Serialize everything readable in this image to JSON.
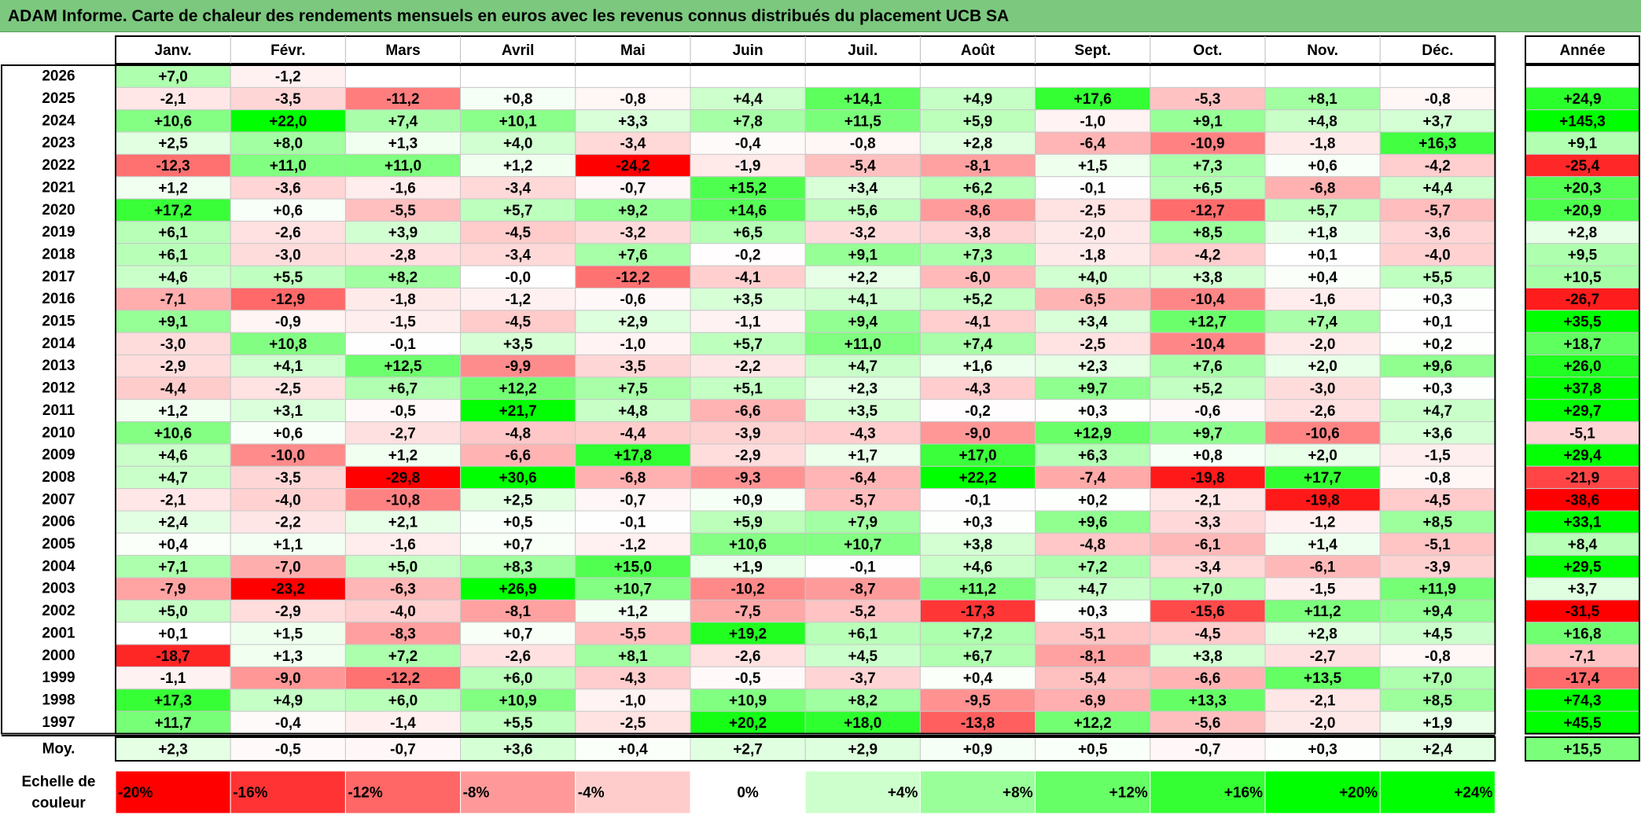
{
  "chart_data": {
    "type": "heatmap",
    "title": "ADAM Informe. Carte de chaleur des rendements mensuels en euros avec les revenus connus distribués du placement UCB SA",
    "months": [
      "Janv.",
      "Févr.",
      "Mars",
      "Avril",
      "Mai",
      "Juin",
      "Juil.",
      "Août",
      "Sept.",
      "Oct.",
      "Nov.",
      "Déc."
    ],
    "year_header": "Année",
    "rows": [
      {
        "year": "2026",
        "values": [
          "+7,0",
          "-1,2",
          "",
          "",
          "",
          "",
          "",
          "",
          "",
          "",
          "",
          ""
        ],
        "annual": ""
      },
      {
        "year": "2025",
        "values": [
          "-2,1",
          "-3,5",
          "-11,2",
          "+0,8",
          "-0,8",
          "+4,4",
          "+14,1",
          "+4,9",
          "+17,6",
          "-5,3",
          "+8,1",
          "-0,8"
        ],
        "annual": "+24,9"
      },
      {
        "year": "2024",
        "values": [
          "+10,6",
          "+22,0",
          "+7,4",
          "+10,1",
          "+3,3",
          "+7,8",
          "+11,5",
          "+5,9",
          "-1,0",
          "+9,1",
          "+4,8",
          "+3,7"
        ],
        "annual": "+145,3"
      },
      {
        "year": "2023",
        "values": [
          "+2,5",
          "+8,0",
          "+1,3",
          "+4,0",
          "-3,4",
          "-0,4",
          "-0,8",
          "+2,8",
          "-6,4",
          "-10,9",
          "-1,8",
          "+16,3"
        ],
        "annual": "+9,1"
      },
      {
        "year": "2022",
        "values": [
          "-12,3",
          "+11,0",
          "+11,0",
          "+1,2",
          "-24,2",
          "-1,9",
          "-5,4",
          "-8,1",
          "+1,5",
          "+7,3",
          "+0,6",
          "-4,2"
        ],
        "annual": "-25,4"
      },
      {
        "year": "2021",
        "values": [
          "+1,2",
          "-3,6",
          "-1,6",
          "-3,4",
          "-0,7",
          "+15,2",
          "+3,4",
          "+6,2",
          "-0,1",
          "+6,5",
          "-6,8",
          "+4,4"
        ],
        "annual": "+20,3"
      },
      {
        "year": "2020",
        "values": [
          "+17,2",
          "+0,6",
          "-5,5",
          "+5,7",
          "+9,2",
          "+14,6",
          "+5,6",
          "-8,6",
          "-2,5",
          "-12,7",
          "+5,7",
          "-5,7"
        ],
        "annual": "+20,9"
      },
      {
        "year": "2019",
        "values": [
          "+6,1",
          "-2,6",
          "+3,9",
          "-4,5",
          "-3,2",
          "+6,5",
          "-3,2",
          "-3,8",
          "-2,0",
          "+8,5",
          "+1,8",
          "-3,6"
        ],
        "annual": "+2,8"
      },
      {
        "year": "2018",
        "values": [
          "+6,1",
          "-3,0",
          "-2,8",
          "-3,4",
          "+7,6",
          "-0,2",
          "+9,1",
          "+7,3",
          "-1,8",
          "-4,2",
          "+0,1",
          "-4,0"
        ],
        "annual": "+9,5"
      },
      {
        "year": "2017",
        "values": [
          "+4,6",
          "+5,5",
          "+8,2",
          "-0,0",
          "-12,2",
          "-4,1",
          "+2,2",
          "-6,0",
          "+4,0",
          "+3,8",
          "+0,4",
          "+5,5"
        ],
        "annual": "+10,5"
      },
      {
        "year": "2016",
        "values": [
          "-7,1",
          "-12,9",
          "-1,8",
          "-1,2",
          "-0,6",
          "+3,5",
          "+4,1",
          "+5,2",
          "-6,5",
          "-10,4",
          "-1,6",
          "+0,3"
        ],
        "annual": "-26,7"
      },
      {
        "year": "2015",
        "values": [
          "+9,1",
          "-0,9",
          "-1,5",
          "-4,5",
          "+2,9",
          "-1,1",
          "+9,4",
          "-4,1",
          "+3,4",
          "+12,7",
          "+7,4",
          "+0,1"
        ],
        "annual": "+35,5"
      },
      {
        "year": "2014",
        "values": [
          "-3,0",
          "+10,8",
          "-0,1",
          "+3,5",
          "-1,0",
          "+5,7",
          "+11,0",
          "+7,4",
          "-2,5",
          "-10,4",
          "-2,0",
          "+0,2"
        ],
        "annual": "+18,7"
      },
      {
        "year": "2013",
        "values": [
          "-2,9",
          "+4,1",
          "+12,5",
          "-9,9",
          "-3,5",
          "-2,2",
          "+4,7",
          "+1,6",
          "+2,3",
          "+7,6",
          "+2,0",
          "+9,6"
        ],
        "annual": "+26,0"
      },
      {
        "year": "2012",
        "values": [
          "-4,4",
          "-2,5",
          "+6,7",
          "+12,2",
          "+7,5",
          "+5,1",
          "+2,3",
          "-4,3",
          "+9,7",
          "+5,2",
          "-3,0",
          "+0,3"
        ],
        "annual": "+37,8"
      },
      {
        "year": "2011",
        "values": [
          "+1,2",
          "+3,1",
          "-0,5",
          "+21,7",
          "+4,8",
          "-6,6",
          "+3,5",
          "-0,2",
          "+0,3",
          "-0,6",
          "-2,6",
          "+4,7"
        ],
        "annual": "+29,7"
      },
      {
        "year": "2010",
        "values": [
          "+10,6",
          "+0,6",
          "-2,7",
          "-4,8",
          "-4,4",
          "-3,9",
          "-4,3",
          "-9,0",
          "+12,9",
          "+9,7",
          "-10,6",
          "+3,6"
        ],
        "annual": "-5,1"
      },
      {
        "year": "2009",
        "values": [
          "+4,6",
          "-10,0",
          "+1,2",
          "-6,6",
          "+17,8",
          "-2,9",
          "+1,7",
          "+17,0",
          "+6,3",
          "+0,8",
          "+2,0",
          "-1,5"
        ],
        "annual": "+29,4"
      },
      {
        "year": "2008",
        "values": [
          "+4,7",
          "-3,5",
          "-29,8",
          "+30,6",
          "-6,8",
          "-9,3",
          "-6,4",
          "+22,2",
          "-7,4",
          "-19,8",
          "+17,7",
          "-0,8"
        ],
        "annual": "-21,9"
      },
      {
        "year": "2007",
        "values": [
          "-2,1",
          "-4,0",
          "-10,8",
          "+2,5",
          "-0,7",
          "+0,9",
          "-5,7",
          "-0,1",
          "+0,2",
          "-2,1",
          "-19,8",
          "-4,5"
        ],
        "annual": "-38,6"
      },
      {
        "year": "2006",
        "values": [
          "+2,4",
          "-2,2",
          "+2,1",
          "+0,5",
          "-0,1",
          "+5,9",
          "+7,9",
          "+0,3",
          "+9,6",
          "-3,3",
          "-1,2",
          "+8,5"
        ],
        "annual": "+33,1"
      },
      {
        "year": "2005",
        "values": [
          "+0,4",
          "+1,1",
          "-1,6",
          "+0,7",
          "-1,2",
          "+10,6",
          "+10,7",
          "+3,8",
          "-4,8",
          "-6,1",
          "+1,4",
          "-5,1"
        ],
        "annual": "+8,4"
      },
      {
        "year": "2004",
        "values": [
          "+7,1",
          "-7,0",
          "+5,0",
          "+8,3",
          "+15,0",
          "+1,9",
          "-0,1",
          "+4,6",
          "+7,2",
          "-3,4",
          "-6,1",
          "-3,9"
        ],
        "annual": "+29,5"
      },
      {
        "year": "2003",
        "values": [
          "-7,9",
          "-23,2",
          "-6,3",
          "+26,9",
          "+10,7",
          "-10,2",
          "-8,7",
          "+11,2",
          "+4,7",
          "+7,0",
          "-1,5",
          "+11,9"
        ],
        "annual": "+3,7"
      },
      {
        "year": "2002",
        "values": [
          "+5,0",
          "-2,9",
          "-4,0",
          "-8,1",
          "+1,2",
          "-7,5",
          "-5,2",
          "-17,3",
          "+0,3",
          "-15,6",
          "+11,2",
          "+9,4"
        ],
        "annual": "-31,5"
      },
      {
        "year": "2001",
        "values": [
          "+0,1",
          "+1,5",
          "-8,3",
          "+0,7",
          "-5,5",
          "+19,2",
          "+6,1",
          "+7,2",
          "-5,1",
          "-4,5",
          "+2,8",
          "+4,5"
        ],
        "annual": "+16,8"
      },
      {
        "year": "2000",
        "values": [
          "-18,7",
          "+1,3",
          "+7,2",
          "-2,6",
          "+8,1",
          "-2,6",
          "+4,5",
          "+6,7",
          "-8,1",
          "+3,8",
          "-2,7",
          "-0,8"
        ],
        "annual": "-7,1"
      },
      {
        "year": "1999",
        "values": [
          "-1,1",
          "-9,0",
          "-12,2",
          "+6,0",
          "-4,3",
          "-0,5",
          "-3,7",
          "+0,4",
          "-5,4",
          "-6,6",
          "+13,5",
          "+7,0"
        ],
        "annual": "-17,4"
      },
      {
        "year": "1998",
        "values": [
          "+17,3",
          "+4,9",
          "+6,0",
          "+10,9",
          "-1,0",
          "+10,9",
          "+8,2",
          "-9,5",
          "-6,9",
          "+13,3",
          "-2,1",
          "+8,5"
        ],
        "annual": "+74,3"
      },
      {
        "year": "1997",
        "values": [
          "+11,7",
          "-0,4",
          "-1,4",
          "+5,5",
          "-2,5",
          "+20,2",
          "+18,0",
          "-13,8",
          "+12,2",
          "-5,6",
          "-2,0",
          "+1,9"
        ],
        "annual": "+45,5"
      }
    ],
    "average_row": {
      "label": "Moy.",
      "values": [
        "+2,3",
        "-0,5",
        "-0,7",
        "+3,6",
        "+0,4",
        "+2,7",
        "+2,9",
        "+0,9",
        "+0,5",
        "-0,7",
        "+0,3",
        "+2,4"
      ],
      "annual": "+15,5"
    },
    "color_scale": {
      "label_line1": "Echelle de",
      "label_line2": "couleur",
      "stops": [
        "-20%",
        "-16%",
        "-12%",
        "-8%",
        "-4%",
        "0%",
        "+4%",
        "+8%",
        "+12%",
        "+16%",
        "+20%",
        "+24%"
      ],
      "stop_values": [
        -20,
        -16,
        -12,
        -8,
        -4,
        0,
        4,
        8,
        12,
        16,
        20,
        24
      ],
      "colors": {
        "negative_max": "#ff0000",
        "zero": "#ffffff",
        "positive_max": "#00ff00"
      }
    }
  }
}
